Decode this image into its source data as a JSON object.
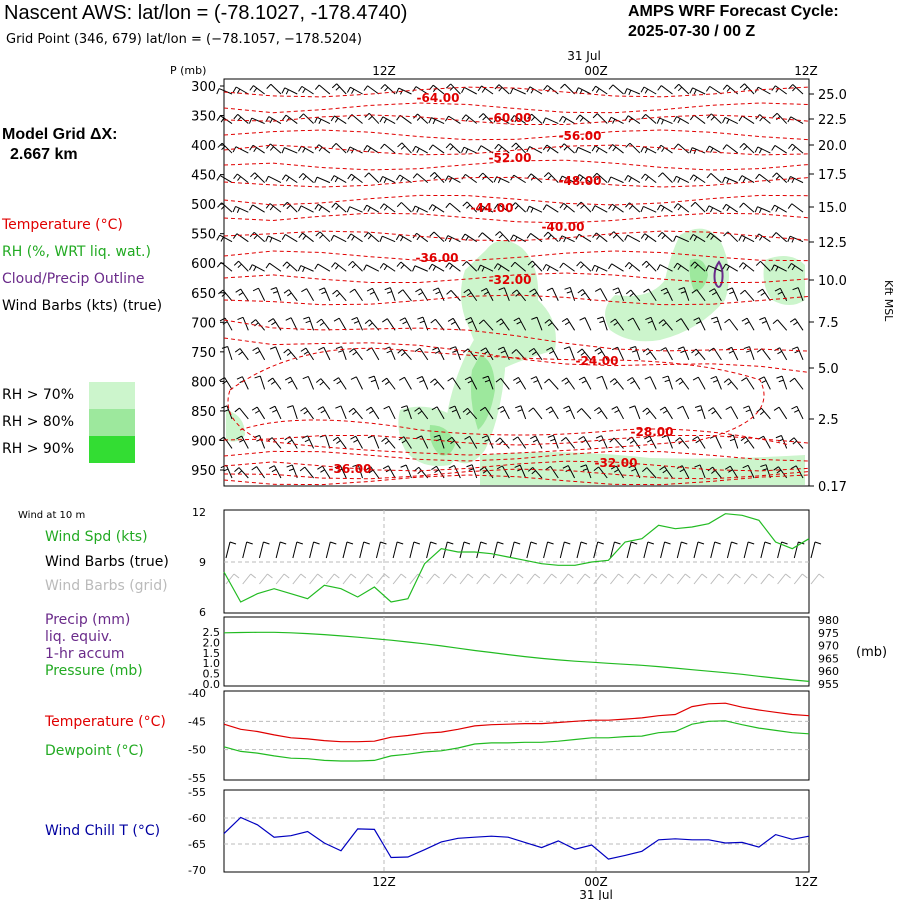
{
  "header": {
    "title": "Nascent AWS:  lat/lon = (-78.1027, -178.4740)",
    "subtitle": "Grid Point (346, 679) lat/lon = (−78.1057, −178.5204)",
    "cycle_line1": "AMPS WRF Forecast Cycle:",
    "cycle_line2": "2025-07-30 / 00  Z"
  },
  "model_grid": {
    "label": "Model Grid ΔX:",
    "value": "2.667 km"
  },
  "legend": {
    "temperature": "Temperature (°C)",
    "rh": "RH (%, WRT liq. wat.)",
    "cloud": "Cloud/Precip Outline",
    "wind": "Wind Barbs (kts) (true)",
    "rh70": "RH > 70%",
    "rh80": "RH > 80%",
    "rh90": "RH > 90%"
  },
  "colors": {
    "temperature": "#e00000",
    "rh": "#22bb22",
    "cloud": "#6a2a8a",
    "wind": "#000000",
    "grid_barbs": "#bbbbbb",
    "windchill": "#0000c0",
    "rh70": "#ccf5cc",
    "rh80": "#9de89d",
    "rh90": "#33dd33"
  },
  "chart_data": [
    {
      "type": "heatmap",
      "name": "time-height cross-section",
      "p_axis_label": "P (mb)",
      "right_axis_label": "Kft MSL",
      "date_label": "31 Jul",
      "time_ticks": [
        "12Z",
        "00Z",
        "12Z"
      ],
      "pressure_levels": [
        300,
        350,
        400,
        450,
        500,
        550,
        600,
        650,
        700,
        750,
        800,
        850,
        900,
        950
      ],
      "kft_levels": [
        "25.0",
        "22.5",
        "20.0",
        "17.5",
        "15.0",
        "12.5",
        "10.0",
        "7.5",
        "5.0",
        "2.5",
        "0.17"
      ],
      "temperature_contour_labels": [
        "-64.00",
        "-60.00",
        "-56.00",
        "-52.00",
        "-48.00",
        "-44.00",
        "-40.00",
        "-36.00",
        "-32.00",
        "-24.00",
        "-28.00",
        "-36.00",
        "-32.00"
      ]
    },
    {
      "type": "line",
      "title": "Wind at 10 m",
      "legend": [
        "Wind Spd (kts)",
        "Wind Barbs (true)",
        "Wind Barbs (grid)"
      ],
      "ylim": [
        6,
        12
      ],
      "yticks": [
        "12",
        "9",
        "6"
      ],
      "series": [
        {
          "name": "Wind Spd (kts)",
          "values": [
            8.4,
            6.6,
            7.1,
            7.4,
            7.1,
            6.8,
            7.6,
            7.4,
            6.9,
            7.5,
            6.6,
            6.8,
            8.9,
            9.8,
            9.6,
            9.6,
            9.5,
            9.3,
            9.1,
            8.9,
            8.8,
            8.8,
            9.0,
            9.1,
            10.2,
            10.4,
            11.2,
            11.0,
            11.1,
            11.3,
            11.9,
            11.8,
            11.5,
            10.2,
            9.8,
            10.4
          ]
        }
      ]
    },
    {
      "type": "line",
      "legend": [
        "Precip (mm)",
        "liq. equiv.",
        "1-hr accum",
        "Pressure (mb)"
      ],
      "left_ticks": [
        "2.5",
        "2.0",
        "1.5",
        "1.0",
        "0.5",
        "0.0"
      ],
      "right_ticks": [
        "980",
        "975",
        "970",
        "965",
        "960",
        "955"
      ],
      "right_unit": "(mb)",
      "ylim": [
        955,
        980
      ],
      "series": [
        {
          "name": "Pressure (mb)",
          "values": [
            975.0,
            975.1,
            975.2,
            975.2,
            975.0,
            974.7,
            974.3,
            973.8,
            973.3,
            972.7,
            972.1,
            971.4,
            970.7,
            969.9,
            969.0,
            968.1,
            967.3,
            966.5,
            965.7,
            965.0,
            964.4,
            963.9,
            963.5,
            963.1,
            962.7,
            962.3,
            961.8,
            961.2,
            960.6,
            960.0,
            959.4,
            958.8,
            958.0,
            957.3,
            956.6,
            956.0
          ]
        }
      ]
    },
    {
      "type": "line",
      "legend": [
        "Temperature (°C)",
        "Dewpoint (°C)"
      ],
      "ylim": [
        -55,
        -40
      ],
      "yticks": [
        "-40",
        "-45",
        "-50",
        "-55"
      ],
      "series": [
        {
          "name": "Temperature (°C)",
          "values": [
            -45.5,
            -46.4,
            -46.8,
            -47.4,
            -47.9,
            -48.1,
            -48.4,
            -48.6,
            -48.6,
            -48.5,
            -47.8,
            -47.5,
            -47.1,
            -46.9,
            -46.4,
            -45.8,
            -45.6,
            -45.5,
            -45.4,
            -45.4,
            -45.2,
            -45.0,
            -44.8,
            -44.8,
            -44.6,
            -44.4,
            -44.0,
            -43.8,
            -42.4,
            -41.9,
            -41.8,
            -42.5,
            -43.0,
            -43.4,
            -43.8,
            -44.0
          ]
        },
        {
          "name": "Dewpoint (°C)",
          "values": [
            -49.5,
            -50.3,
            -50.6,
            -51.1,
            -51.5,
            -51.6,
            -51.9,
            -52.0,
            -52.0,
            -51.9,
            -51.1,
            -50.8,
            -50.4,
            -50.2,
            -49.7,
            -49.0,
            -48.8,
            -48.8,
            -48.7,
            -48.7,
            -48.5,
            -48.2,
            -47.9,
            -47.9,
            -47.7,
            -47.6,
            -47.0,
            -46.8,
            -45.5,
            -45.0,
            -44.9,
            -45.6,
            -46.2,
            -46.6,
            -47.0,
            -47.2
          ]
        }
      ]
    },
    {
      "type": "line",
      "legend": [
        "Wind Chill T (°C)"
      ],
      "ylim": [
        -70,
        -55
      ],
      "yticks": [
        "-55",
        "-60",
        "-65",
        "-70"
      ],
      "series": [
        {
          "name": "Wind Chill T (°C)",
          "values": [
            -63.0,
            -59.9,
            -61.3,
            -63.7,
            -63.4,
            -62.6,
            -64.8,
            -66.3,
            -62.1,
            -62.2,
            -67.6,
            -67.5,
            -66.1,
            -64.6,
            -63.9,
            -63.7,
            -63.5,
            -63.7,
            -64.7,
            -65.7,
            -64.4,
            -66.0,
            -65.2,
            -67.9,
            -67.2,
            -66.4,
            -64.2,
            -64.0,
            -64.2,
            -64.2,
            -64.8,
            -64.7,
            -65.6,
            -63.2,
            -64.1,
            -63.5
          ]
        }
      ]
    }
  ],
  "bottom_axis": {
    "labels": [
      "12Z",
      "00Z",
      "12Z"
    ],
    "date": "31 Jul"
  }
}
